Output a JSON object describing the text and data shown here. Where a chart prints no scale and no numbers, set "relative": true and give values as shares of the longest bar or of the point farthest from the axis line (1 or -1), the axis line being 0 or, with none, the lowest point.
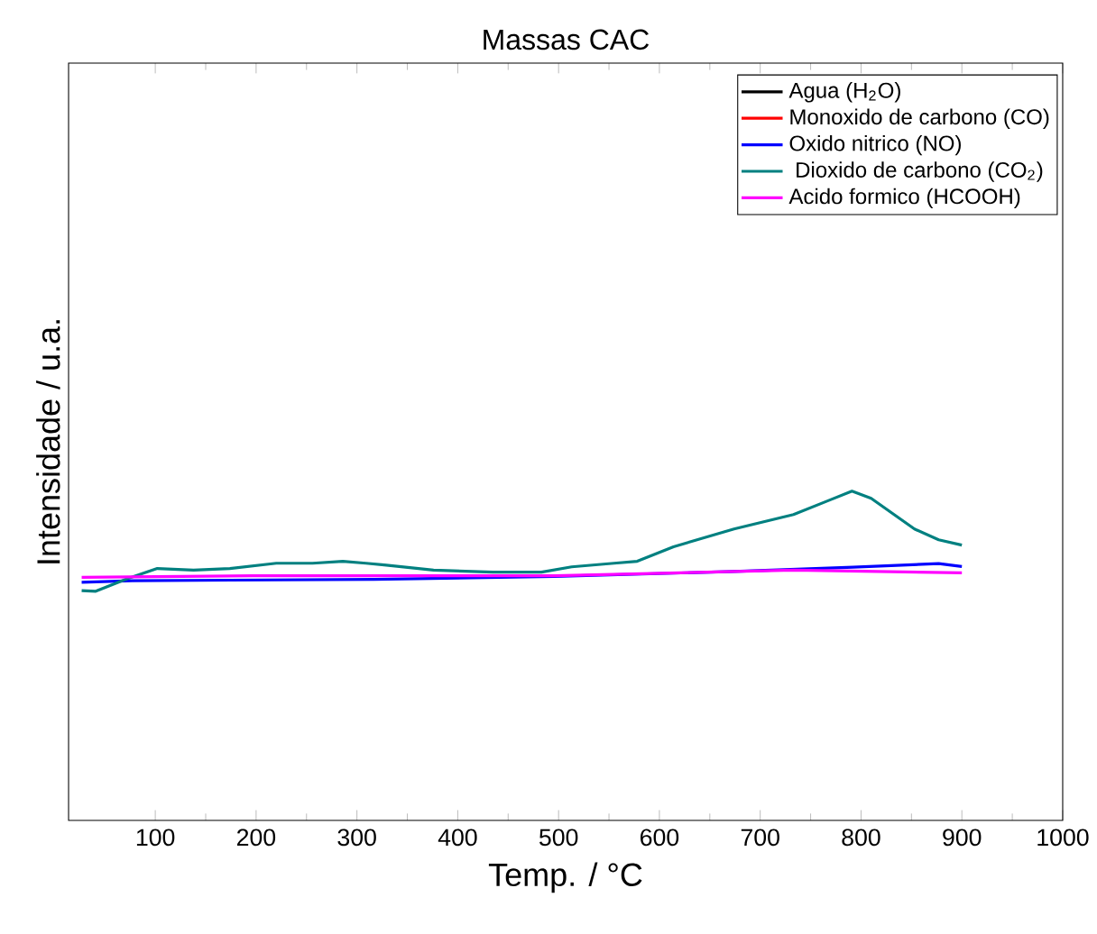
{
  "chart_data": {
    "type": "line",
    "title": "Massas CAC",
    "xlabel": "Temp. / °C",
    "ylabel": "Intensidade / u.a.",
    "relative": true,
    "xlim": [
      14,
      1000
    ],
    "xticks": [
      100,
      200,
      300,
      400,
      500,
      600,
      700,
      800,
      900,
      1000
    ],
    "legend": "top right",
    "grid": false,
    "marker": "none",
    "line_style": "solid",
    "series": [
      {
        "name": "Agua (H$_{2}$O)",
        "color": "#000000"
      },
      {
        "name": "Monoxido de carbono (CO)",
        "color": "#ff0000"
      },
      {
        "name": "Oxido nitrico (NO)",
        "color": "#0000ff",
        "x": [
          27,
          77,
          317,
          496,
          674,
          792,
          877,
          900
        ],
        "values": [
          0.723,
          0.728,
          0.732,
          0.741,
          0.756,
          0.769,
          0.78,
          0.771
        ]
      },
      {
        "name": " Dioxido de carbono (CO$_{2}$)",
        "color": "#008080",
        "x": [
          27,
          41,
          72,
          102,
          138,
          174,
          220,
          256,
          286,
          309,
          327,
          376,
          435,
          483,
          513,
          555,
          578,
          614,
          674,
          733,
          769,
          791,
          810,
          853,
          877,
          900
        ],
        "values": [
          0.698,
          0.696,
          0.734,
          0.765,
          0.76,
          0.765,
          0.781,
          0.781,
          0.787,
          0.781,
          0.776,
          0.76,
          0.754,
          0.754,
          0.77,
          0.781,
          0.787,
          0.831,
          0.885,
          0.929,
          0.973,
          1.0,
          0.978,
          0.885,
          0.852,
          0.836
        ]
      },
      {
        "name": "Acido formico (HCOOH)",
        "color": "#ff00ff",
        "x": [
          27,
          197,
          496,
          733,
          900
        ],
        "values": [
          0.738,
          0.743,
          0.743,
          0.76,
          0.752
        ]
      }
    ]
  }
}
